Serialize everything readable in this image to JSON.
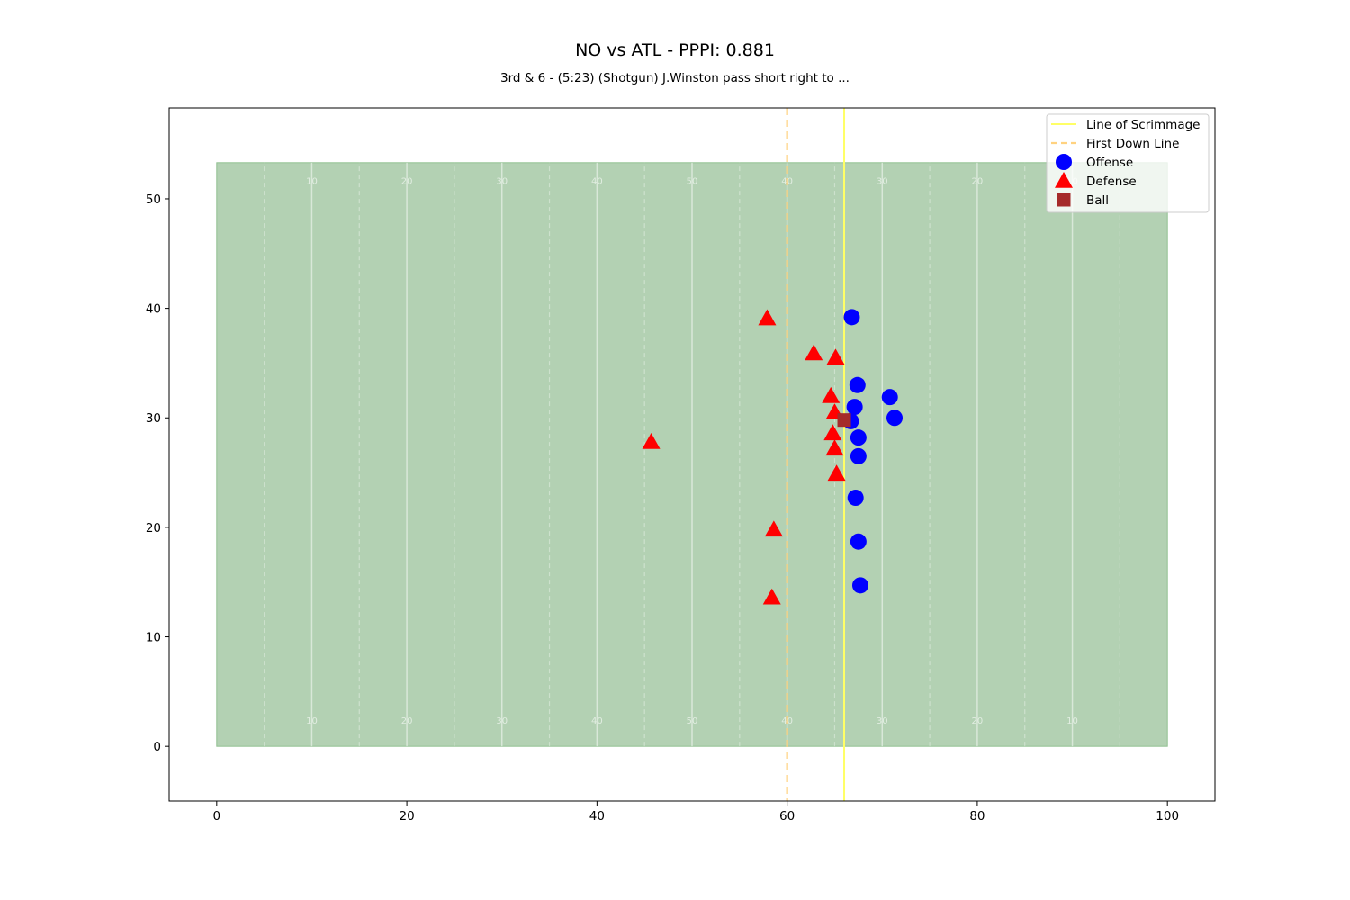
{
  "chart_data": {
    "type": "scatter",
    "title": "NO vs ATL - PPPI: 0.881",
    "subtitle": "3rd & 6 - (5:23) (Shotgun) J.Winston pass short right to ...",
    "xlabel": "",
    "ylabel": "",
    "xlim": [
      -5,
      105
    ],
    "ylim": [
      -5,
      58.3
    ],
    "x_ticks": [
      0,
      20,
      40,
      60,
      80,
      100
    ],
    "y_ticks": [
      0,
      10,
      20,
      30,
      40,
      50
    ],
    "field": {
      "x_range": [
        0,
        100
      ],
      "y_range": [
        0,
        53.3
      ],
      "color": "#b3d1b3",
      "solid_lines": [
        10,
        20,
        30,
        40,
        50,
        60,
        70,
        80,
        90
      ],
      "dashed_lines": [
        5,
        15,
        25,
        35,
        45,
        55,
        65,
        75,
        85,
        95
      ],
      "yard_numbers": [
        {
          "x": 10,
          "label": "10"
        },
        {
          "x": 20,
          "label": "20"
        },
        {
          "x": 30,
          "label": "30"
        },
        {
          "x": 40,
          "label": "40"
        },
        {
          "x": 50,
          "label": "50"
        },
        {
          "x": 60,
          "label": "40"
        },
        {
          "x": 70,
          "label": "30"
        },
        {
          "x": 80,
          "label": "20"
        },
        {
          "x": 90,
          "label": "10"
        }
      ],
      "number_y_top": 51.6,
      "number_y_bottom": 2.3
    },
    "line_of_scrimmage": 66,
    "first_down_line": 60,
    "legend": {
      "position": "top-right",
      "entries": [
        {
          "label": "Line of Scrimmage",
          "kind": "line",
          "color": "#ffff66"
        },
        {
          "label": "First Down Line",
          "kind": "dashed",
          "color": "#ffd280"
        },
        {
          "label": "Offense",
          "kind": "circle",
          "color": "#0000ff"
        },
        {
          "label": "Defense",
          "kind": "triangle",
          "color": "#ff0000"
        },
        {
          "label": "Ball",
          "kind": "square",
          "color": "#a52a2a"
        }
      ]
    },
    "series": [
      {
        "name": "Offense",
        "marker": "circle",
        "color": "#0000ff",
        "points": [
          {
            "x": 66.8,
            "y": 39.2
          },
          {
            "x": 67.4,
            "y": 33.0
          },
          {
            "x": 70.8,
            "y": 31.9
          },
          {
            "x": 67.1,
            "y": 31.0
          },
          {
            "x": 71.3,
            "y": 30.0
          },
          {
            "x": 66.7,
            "y": 29.7
          },
          {
            "x": 67.5,
            "y": 28.2
          },
          {
            "x": 67.5,
            "y": 26.5
          },
          {
            "x": 67.2,
            "y": 22.7
          },
          {
            "x": 67.5,
            "y": 18.7
          },
          {
            "x": 67.7,
            "y": 14.7
          }
        ]
      },
      {
        "name": "Defense",
        "marker": "triangle",
        "color": "#ff0000",
        "points": [
          {
            "x": 57.9,
            "y": 39.1
          },
          {
            "x": 62.8,
            "y": 35.9
          },
          {
            "x": 65.1,
            "y": 35.5
          },
          {
            "x": 64.6,
            "y": 32.0
          },
          {
            "x": 65.0,
            "y": 30.5
          },
          {
            "x": 64.8,
            "y": 28.6
          },
          {
            "x": 65.0,
            "y": 27.2
          },
          {
            "x": 65.2,
            "y": 24.9
          },
          {
            "x": 45.7,
            "y": 27.8
          },
          {
            "x": 58.6,
            "y": 19.8
          },
          {
            "x": 58.4,
            "y": 13.6
          }
        ]
      },
      {
        "name": "Ball",
        "marker": "square",
        "color": "#a52a2a",
        "points": [
          {
            "x": 66.0,
            "y": 29.8
          }
        ]
      }
    ]
  }
}
